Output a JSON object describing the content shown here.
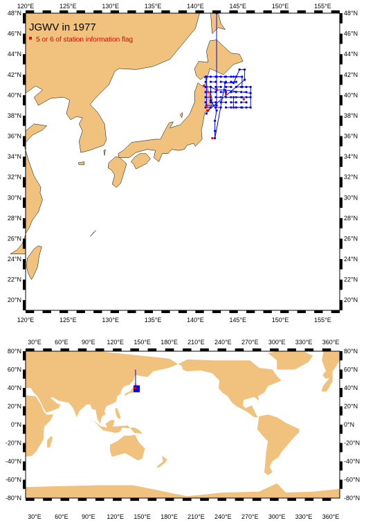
{
  "title": "JGWV in 1977",
  "legend": {
    "label": "5 or 6 of station information flag",
    "marker_color": "#ff0000"
  },
  "colors": {
    "land": "#f0c27d",
    "ocean": "#ffffff",
    "track": "#0000ff",
    "flag": "#ff0000"
  },
  "map_top": {
    "lon_range": [
      120,
      157
    ],
    "lat_range": [
      19,
      48
    ],
    "lon_ticks": [
      "120°E",
      "125°E",
      "130°E",
      "135°E",
      "140°E",
      "145°E",
      "150°E",
      "155°E"
    ],
    "lat_ticks": [
      "20°N",
      "22°N",
      "24°N",
      "26°N",
      "28°N",
      "30°N",
      "32°N",
      "34°N",
      "36°N",
      "38°N",
      "40°N",
      "42°N",
      "44°N",
      "46°N",
      "48°N"
    ]
  },
  "map_bottom": {
    "lon_range": [
      20,
      370
    ],
    "lat_range": [
      -80,
      80
    ],
    "lon_ticks": [
      "30°E",
      "60°E",
      "90°E",
      "120°E",
      "150°E",
      "180°E",
      "210°E",
      "240°E",
      "270°E",
      "300°E",
      "330°E",
      "360°E"
    ],
    "lat_ticks": [
      "-80°N",
      "-60°N",
      "-40°N",
      "-20°N",
      "0°N",
      "20°N",
      "40°N",
      "60°N",
      "80°N"
    ]
  },
  "stations": [
    [
      142.5,
      48
    ],
    [
      142.5,
      39
    ],
    [
      141.3,
      39
    ],
    [
      141.3,
      41.8
    ],
    [
      142.5,
      41.8
    ],
    [
      143.5,
      41.8
    ],
    [
      144.5,
      41.8
    ],
    [
      145.5,
      41.8
    ],
    [
      145.5,
      40.8
    ],
    [
      146.5,
      40.8
    ],
    [
      146.5,
      39.8
    ],
    [
      145.5,
      39.8
    ],
    [
      144.5,
      39.8
    ],
    [
      144.5,
      38.8
    ],
    [
      145.5,
      38.8
    ],
    [
      146.5,
      38.8
    ],
    [
      146.5,
      40.2
    ],
    [
      143.5,
      40.5
    ],
    [
      142.5,
      40.5
    ],
    [
      141.8,
      40.8
    ],
    [
      141.8,
      39.5
    ],
    [
      142.5,
      38.5
    ],
    [
      142.3,
      37.5
    ],
    [
      142.3,
      36.5
    ],
    [
      142.3,
      35.8
    ],
    [
      143.5,
      41.2
    ],
    [
      144.5,
      41.2
    ],
    [
      145.2,
      42.5
    ],
    [
      145.8,
      42.5
    ],
    [
      145.8,
      41.5
    ],
    [
      141.5,
      38.5
    ],
    [
      141.3,
      38.2
    ]
  ],
  "flagged_stations": [
    [
      142,
      35.8
    ],
    [
      141.3,
      38.9
    ],
    [
      141.5,
      40.3
    ],
    [
      142.5,
      40.6
    ],
    [
      143.6,
      40.1
    ],
    [
      145.7,
      39.6
    ],
    [
      141.8,
      39.9
    ],
    [
      141.4,
      38.5
    ],
    [
      141,
      40.9
    ]
  ]
}
